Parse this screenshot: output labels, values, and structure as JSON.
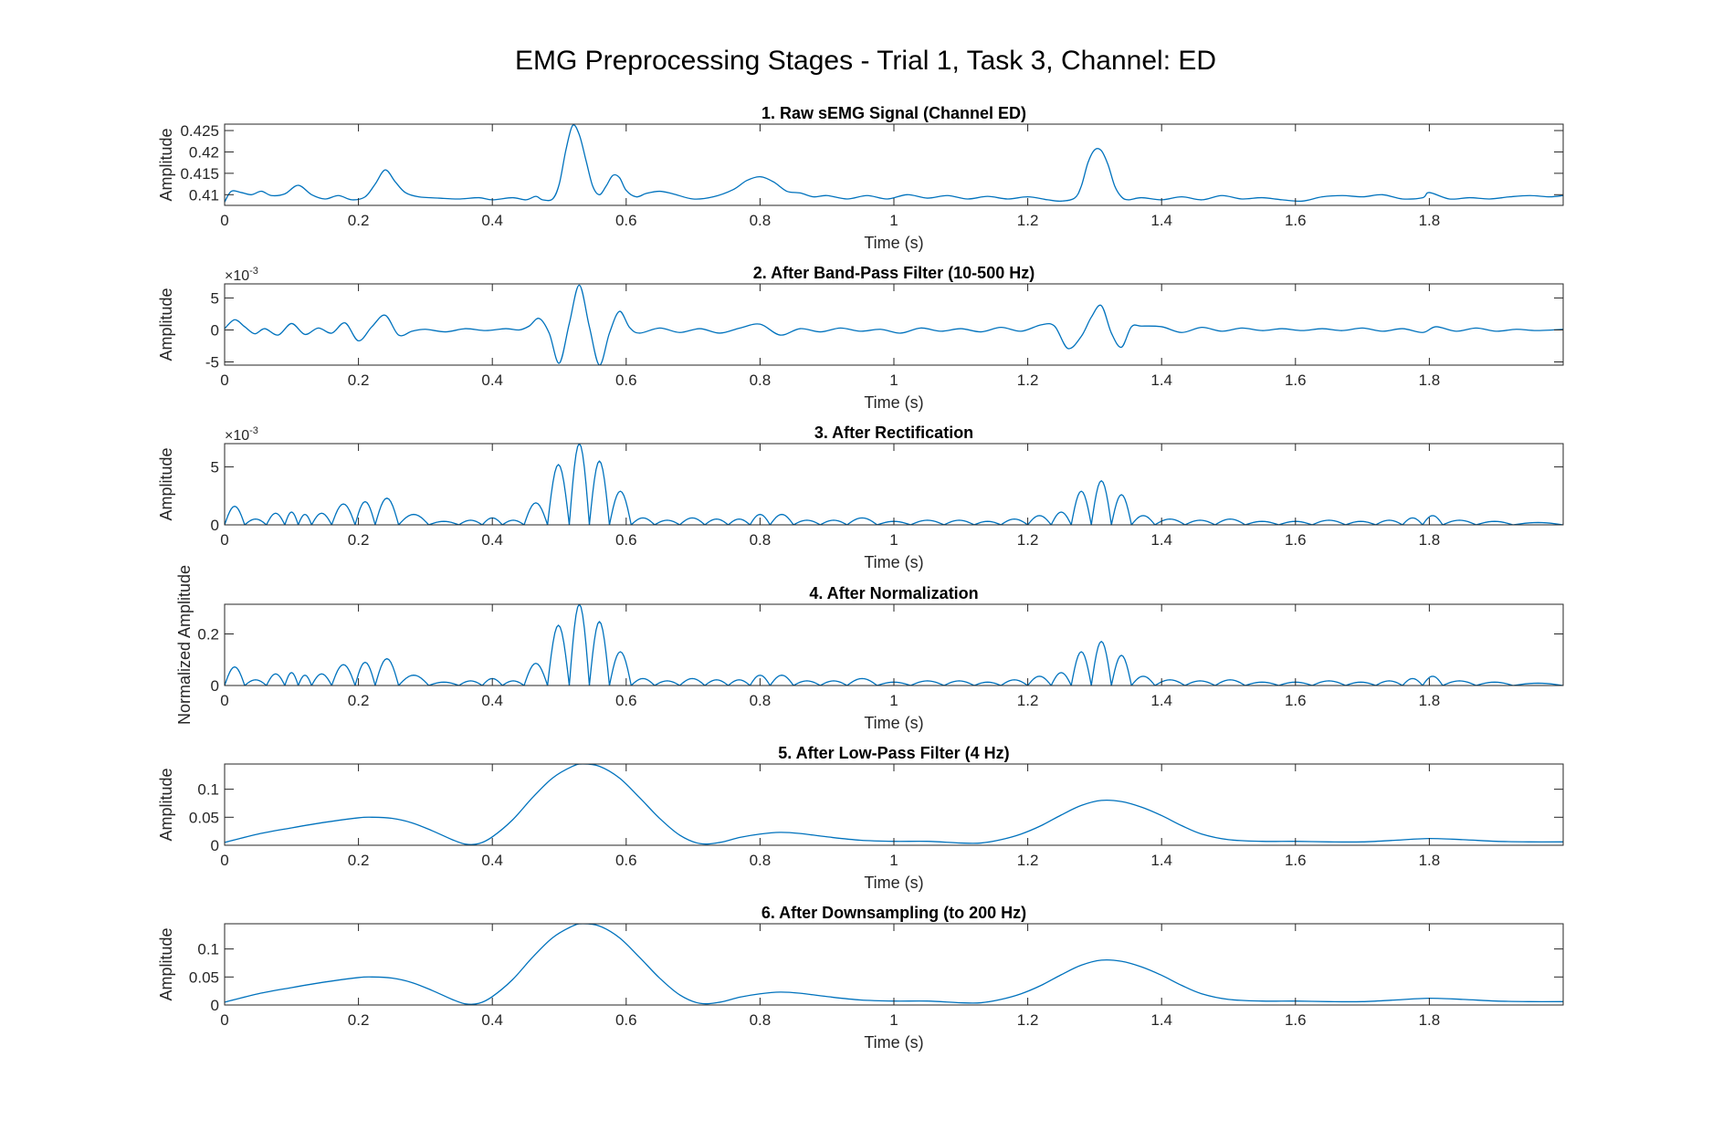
{
  "figure_title": "EMG Preprocessing Stages - Trial 1, Task 3, Channel: ED",
  "colors": {
    "line": "#0072BD",
    "axis": "#262626"
  },
  "chart_data": [
    {
      "type": "line",
      "title": "1. Raw sEMG Signal (Channel ED)",
      "xlabel": "Time (s)",
      "ylabel": "Amplitude",
      "xlim": [
        0,
        2.0
      ],
      "ylim": [
        0.4075,
        0.4265
      ],
      "xticks": [
        0,
        0.2,
        0.4,
        0.6,
        0.8,
        1,
        1.2,
        1.4,
        1.6,
        1.8
      ],
      "xtick_labels": [
        "0",
        "0.2",
        "0.4",
        "0.6",
        "0.8",
        "1",
        "1.2",
        "1.4",
        "1.6",
        "1.8"
      ],
      "yticks": [
        0.41,
        0.415,
        0.42,
        0.425
      ],
      "ytick_labels": [
        "0.41",
        "0.415",
        "0.42",
        "0.425"
      ],
      "exponent_label": "",
      "series": [
        {
          "x": [
            0,
            0.01,
            0.025,
            0.04,
            0.055,
            0.07,
            0.09,
            0.11,
            0.13,
            0.15,
            0.17,
            0.19,
            0.21,
            0.225,
            0.24,
            0.255,
            0.27,
            0.29,
            0.32,
            0.35,
            0.38,
            0.4,
            0.43,
            0.45,
            0.465,
            0.475,
            0.49,
            0.5,
            0.51,
            0.52,
            0.53,
            0.54,
            0.55,
            0.56,
            0.57,
            0.58,
            0.59,
            0.6,
            0.615,
            0.63,
            0.65,
            0.67,
            0.7,
            0.73,
            0.76,
            0.78,
            0.8,
            0.82,
            0.84,
            0.86,
            0.88,
            0.9,
            0.93,
            0.96,
            0.99,
            1.02,
            1.05,
            1.08,
            1.11,
            1.14,
            1.17,
            1.2,
            1.23,
            1.25,
            1.27,
            1.28,
            1.29,
            1.3,
            1.31,
            1.32,
            1.33,
            1.34,
            1.35,
            1.37,
            1.4,
            1.43,
            1.46,
            1.49,
            1.52,
            1.55,
            1.58,
            1.61,
            1.64,
            1.67,
            1.7,
            1.73,
            1.76,
            1.79,
            1.8,
            1.83,
            1.86,
            1.89,
            1.92,
            1.95,
            1.98,
            2.0
          ],
          "y": [
            0.4083,
            0.4108,
            0.4105,
            0.41,
            0.4108,
            0.4098,
            0.4102,
            0.4122,
            0.41,
            0.409,
            0.4098,
            0.4088,
            0.4095,
            0.4125,
            0.4158,
            0.413,
            0.4105,
            0.4095,
            0.4092,
            0.409,
            0.4093,
            0.4088,
            0.4093,
            0.4088,
            0.4096,
            0.4088,
            0.409,
            0.4125,
            0.4205,
            0.4262,
            0.424,
            0.418,
            0.412,
            0.41,
            0.412,
            0.4145,
            0.414,
            0.411,
            0.4095,
            0.4103,
            0.4108,
            0.4102,
            0.409,
            0.4095,
            0.4112,
            0.4133,
            0.4142,
            0.413,
            0.4108,
            0.4104,
            0.4095,
            0.4098,
            0.409,
            0.4098,
            0.409,
            0.41,
            0.4092,
            0.4098,
            0.409,
            0.4096,
            0.409,
            0.4095,
            0.4088,
            0.4085,
            0.4092,
            0.412,
            0.4175,
            0.4205,
            0.4203,
            0.417,
            0.412,
            0.4095,
            0.4088,
            0.4093,
            0.4088,
            0.4095,
            0.4088,
            0.4098,
            0.409,
            0.4093,
            0.4088,
            0.4085,
            0.4095,
            0.4098,
            0.4095,
            0.41,
            0.409,
            0.4093,
            0.4105,
            0.409,
            0.4093,
            0.409,
            0.4095,
            0.4098,
            0.4095,
            0.4098
          ]
        }
      ]
    },
    {
      "type": "line",
      "title": "2. After Band-Pass Filter (10-500 Hz)",
      "xlabel": "Time (s)",
      "ylabel": "Amplitude",
      "xlim": [
        0,
        2.0
      ],
      "ylim": [
        -5.5,
        7.2
      ],
      "xticks": [
        0,
        0.2,
        0.4,
        0.6,
        0.8,
        1,
        1.2,
        1.4,
        1.6,
        1.8
      ],
      "xtick_labels": [
        "0",
        "0.2",
        "0.4",
        "0.6",
        "0.8",
        "1",
        "1.2",
        "1.4",
        "1.6",
        "1.8"
      ],
      "yticks": [
        -5,
        0,
        5
      ],
      "ytick_labels": [
        "-5",
        "0",
        "5"
      ],
      "exponent_label": "×10",
      "exponent_power": "-3",
      "series": [
        {
          "x": [
            0,
            0.015,
            0.03,
            0.045,
            0.06,
            0.08,
            0.1,
            0.12,
            0.14,
            0.16,
            0.18,
            0.2,
            0.22,
            0.24,
            0.26,
            0.28,
            0.3,
            0.33,
            0.36,
            0.39,
            0.42,
            0.44,
            0.455,
            0.47,
            0.485,
            0.5,
            0.515,
            0.53,
            0.545,
            0.56,
            0.575,
            0.59,
            0.605,
            0.62,
            0.65,
            0.68,
            0.71,
            0.74,
            0.77,
            0.8,
            0.83,
            0.86,
            0.89,
            0.92,
            0.95,
            0.98,
            1.01,
            1.04,
            1.07,
            1.1,
            1.13,
            1.16,
            1.19,
            1.22,
            1.24,
            1.26,
            1.28,
            1.295,
            1.31,
            1.325,
            1.34,
            1.355,
            1.37,
            1.4,
            1.43,
            1.46,
            1.49,
            1.52,
            1.55,
            1.58,
            1.61,
            1.64,
            1.67,
            1.7,
            1.73,
            1.76,
            1.79,
            1.81,
            1.84,
            1.87,
            1.9,
            1.93,
            1.96,
            2.0
          ],
          "y": [
            0.2,
            1.6,
            0.5,
            -0.6,
            0.2,
            -0.8,
            1.0,
            -0.7,
            0.3,
            -0.5,
            1.1,
            -1.7,
            0.5,
            2.3,
            -0.8,
            -0.2,
            0.1,
            -0.3,
            0.2,
            -0.1,
            0.2,
            0.0,
            0.6,
            1.8,
            -0.5,
            -5.2,
            1.0,
            7.0,
            0.5,
            -5.5,
            -0.5,
            2.9,
            0.4,
            -0.5,
            0.3,
            -0.4,
            0.2,
            -0.5,
            0.3,
            0.9,
            -0.8,
            0.2,
            -0.3,
            0.3,
            -0.2,
            0.1,
            -0.5,
            0.3,
            -0.2,
            0.2,
            -0.3,
            0.4,
            -0.2,
            0.8,
            0.6,
            -2.9,
            -1.0,
            2.0,
            3.8,
            -0.5,
            -2.7,
            0.5,
            0.6,
            0.5,
            -0.4,
            0.4,
            -0.2,
            0.3,
            -0.1,
            0.2,
            -0.1,
            0.2,
            -0.1,
            0.3,
            -0.2,
            0.2,
            -0.4,
            0.5,
            -0.2,
            0.3,
            -0.2,
            0.1,
            -0.1,
            0.1
          ]
        }
      ]
    },
    {
      "type": "line",
      "title": "3. After Rectification",
      "xlabel": "Time (s)",
      "ylabel": "Amplitude",
      "xlim": [
        0,
        2.0
      ],
      "ylim": [
        0,
        7.0
      ],
      "xticks": [
        0,
        0.2,
        0.4,
        0.6,
        0.8,
        1,
        1.2,
        1.4,
        1.6,
        1.8
      ],
      "xtick_labels": [
        "0",
        "0.2",
        "0.4",
        "0.6",
        "0.8",
        "1",
        "1.2",
        "1.4",
        "1.6",
        "1.8"
      ],
      "yticks": [
        0,
        5
      ],
      "ytick_labels": [
        "0",
        "5"
      ],
      "exponent_label": "×10",
      "exponent_power": "-3",
      "series": [
        {
          "peaks_x": [
            0.015,
            0.045,
            0.08,
            0.1,
            0.12,
            0.14,
            0.18,
            0.21,
            0.24,
            0.28,
            0.33,
            0.37,
            0.4,
            0.43,
            0.465,
            0.5,
            0.53,
            0.56,
            0.59,
            0.625,
            0.66,
            0.7,
            0.735,
            0.77,
            0.8,
            0.83,
            0.87,
            0.91,
            0.95,
            1.0,
            1.05,
            1.1,
            1.14,
            1.18,
            1.22,
            1.25,
            1.28,
            1.31,
            1.34,
            1.37,
            1.41,
            1.46,
            1.5,
            1.55,
            1.6,
            1.65,
            1.7,
            1.74,
            1.78,
            1.8,
            1.84,
            1.9,
            1.95
          ],
          "peaks_y": [
            1.6,
            0.5,
            1.0,
            1.1,
            0.9,
            1.0,
            1.8,
            2.0,
            2.3,
            0.9,
            0.3,
            0.4,
            0.6,
            0.4,
            1.9,
            5.2,
            7.0,
            5.5,
            2.9,
            0.6,
            0.4,
            0.6,
            0.5,
            0.5,
            0.9,
            0.9,
            0.4,
            0.4,
            0.6,
            0.3,
            0.4,
            0.4,
            0.3,
            0.5,
            0.8,
            1.1,
            2.9,
            3.8,
            2.6,
            0.8,
            0.5,
            0.4,
            0.5,
            0.3,
            0.3,
            0.4,
            0.3,
            0.4,
            0.6,
            0.8,
            0.4,
            0.3,
            0.2
          ]
        }
      ]
    },
    {
      "type": "line",
      "title": "4. After Normalization",
      "xlabel": "Time (s)",
      "ylabel": "Normalized Amplitude",
      "xlim": [
        0,
        2.0
      ],
      "ylim": [
        0,
        0.315
      ],
      "xticks": [
        0,
        0.2,
        0.4,
        0.6,
        0.8,
        1,
        1.2,
        1.4,
        1.6,
        1.8
      ],
      "xtick_labels": [
        "0",
        "0.2",
        "0.4",
        "0.6",
        "0.8",
        "1",
        "1.2",
        "1.4",
        "1.6",
        "1.8"
      ],
      "yticks": [
        0,
        0.2
      ],
      "ytick_labels": [
        "0",
        "0.2"
      ],
      "exponent_label": "",
      "series": [
        {
          "peaks_x": [
            0.015,
            0.045,
            0.08,
            0.1,
            0.12,
            0.14,
            0.18,
            0.21,
            0.24,
            0.28,
            0.33,
            0.37,
            0.4,
            0.43,
            0.465,
            0.5,
            0.53,
            0.56,
            0.59,
            0.625,
            0.66,
            0.7,
            0.735,
            0.77,
            0.8,
            0.83,
            0.87,
            0.91,
            0.95,
            1.0,
            1.05,
            1.1,
            1.14,
            1.18,
            1.22,
            1.25,
            1.28,
            1.31,
            1.34,
            1.37,
            1.41,
            1.46,
            1.5,
            1.55,
            1.6,
            1.65,
            1.7,
            1.74,
            1.78,
            1.8,
            1.84,
            1.9,
            1.95
          ],
          "peaks_y": [
            0.072,
            0.022,
            0.045,
            0.05,
            0.04,
            0.045,
            0.081,
            0.09,
            0.104,
            0.04,
            0.013,
            0.018,
            0.027,
            0.018,
            0.086,
            0.234,
            0.315,
            0.248,
            0.131,
            0.027,
            0.018,
            0.027,
            0.022,
            0.022,
            0.04,
            0.04,
            0.018,
            0.018,
            0.027,
            0.013,
            0.018,
            0.018,
            0.013,
            0.022,
            0.036,
            0.05,
            0.131,
            0.171,
            0.117,
            0.036,
            0.022,
            0.018,
            0.022,
            0.013,
            0.013,
            0.018,
            0.013,
            0.018,
            0.027,
            0.036,
            0.018,
            0.013,
            0.009
          ]
        }
      ]
    },
    {
      "type": "line",
      "title": "5. After Low-Pass Filter (4 Hz)",
      "xlabel": "Time (s)",
      "ylabel": "Amplitude",
      "xlim": [
        0,
        2.0
      ],
      "ylim": [
        0,
        0.145
      ],
      "xticks": [
        0,
        0.2,
        0.4,
        0.6,
        0.8,
        1,
        1.2,
        1.4,
        1.6,
        1.8
      ],
      "xtick_labels": [
        "0",
        "0.2",
        "0.4",
        "0.6",
        "0.8",
        "1",
        "1.2",
        "1.4",
        "1.6",
        "1.8"
      ],
      "yticks": [
        0,
        0.05,
        0.1
      ],
      "ytick_labels": [
        "0",
        "0.05",
        "0.1"
      ],
      "exponent_label": "",
      "series": [
        {
          "x": [
            0,
            0.05,
            0.1,
            0.15,
            0.2,
            0.22,
            0.25,
            0.28,
            0.31,
            0.34,
            0.36,
            0.38,
            0.4,
            0.43,
            0.46,
            0.49,
            0.52,
            0.535,
            0.56,
            0.59,
            0.62,
            0.65,
            0.68,
            0.71,
            0.74,
            0.77,
            0.8,
            0.83,
            0.86,
            0.9,
            0.95,
            1.0,
            1.05,
            1.1,
            1.13,
            1.16,
            1.19,
            1.22,
            1.25,
            1.28,
            1.31,
            1.34,
            1.37,
            1.4,
            1.43,
            1.46,
            1.5,
            1.55,
            1.6,
            1.65,
            1.7,
            1.75,
            1.8,
            1.85,
            1.9,
            1.95,
            2.0
          ],
          "y": [
            0.005,
            0.02,
            0.031,
            0.041,
            0.049,
            0.05,
            0.048,
            0.04,
            0.026,
            0.01,
            0.002,
            0.003,
            0.015,
            0.045,
            0.085,
            0.12,
            0.141,
            0.145,
            0.141,
            0.12,
            0.085,
            0.048,
            0.018,
            0.003,
            0.005,
            0.014,
            0.02,
            0.023,
            0.021,
            0.015,
            0.009,
            0.007,
            0.007,
            0.004,
            0.004,
            0.01,
            0.02,
            0.035,
            0.054,
            0.071,
            0.08,
            0.078,
            0.068,
            0.053,
            0.035,
            0.02,
            0.01,
            0.007,
            0.007,
            0.006,
            0.006,
            0.009,
            0.012,
            0.01,
            0.007,
            0.006,
            0.006
          ]
        }
      ]
    },
    {
      "type": "line",
      "title": "6. After Downsampling (to 200 Hz)",
      "xlabel": "Time (s)",
      "ylabel": "Amplitude",
      "xlim": [
        0,
        2.0
      ],
      "ylim": [
        0,
        0.145
      ],
      "xticks": [
        0,
        0.2,
        0.4,
        0.6,
        0.8,
        1,
        1.2,
        1.4,
        1.6,
        1.8
      ],
      "xtick_labels": [
        "0",
        "0.2",
        "0.4",
        "0.6",
        "0.8",
        "1",
        "1.2",
        "1.4",
        "1.6",
        "1.8"
      ],
      "yticks": [
        0,
        0.05,
        0.1
      ],
      "ytick_labels": [
        "0",
        "0.05",
        "0.1"
      ],
      "exponent_label": "",
      "series": [
        {
          "x": [
            0,
            0.05,
            0.1,
            0.15,
            0.2,
            0.22,
            0.25,
            0.28,
            0.31,
            0.34,
            0.36,
            0.38,
            0.4,
            0.43,
            0.46,
            0.49,
            0.52,
            0.535,
            0.56,
            0.59,
            0.62,
            0.65,
            0.68,
            0.71,
            0.74,
            0.77,
            0.8,
            0.83,
            0.86,
            0.9,
            0.95,
            1.0,
            1.05,
            1.1,
            1.13,
            1.16,
            1.19,
            1.22,
            1.25,
            1.28,
            1.31,
            1.34,
            1.37,
            1.4,
            1.43,
            1.46,
            1.5,
            1.55,
            1.6,
            1.65,
            1.7,
            1.75,
            1.8,
            1.85,
            1.9,
            1.95,
            2.0
          ],
          "y": [
            0.005,
            0.02,
            0.031,
            0.041,
            0.049,
            0.05,
            0.048,
            0.04,
            0.026,
            0.01,
            0.002,
            0.003,
            0.015,
            0.045,
            0.085,
            0.12,
            0.141,
            0.145,
            0.141,
            0.12,
            0.085,
            0.048,
            0.018,
            0.003,
            0.005,
            0.014,
            0.02,
            0.023,
            0.021,
            0.015,
            0.009,
            0.007,
            0.007,
            0.004,
            0.004,
            0.01,
            0.02,
            0.035,
            0.054,
            0.071,
            0.08,
            0.078,
            0.068,
            0.053,
            0.035,
            0.02,
            0.01,
            0.007,
            0.007,
            0.006,
            0.006,
            0.009,
            0.012,
            0.01,
            0.007,
            0.006,
            0.006
          ]
        }
      ]
    }
  ]
}
